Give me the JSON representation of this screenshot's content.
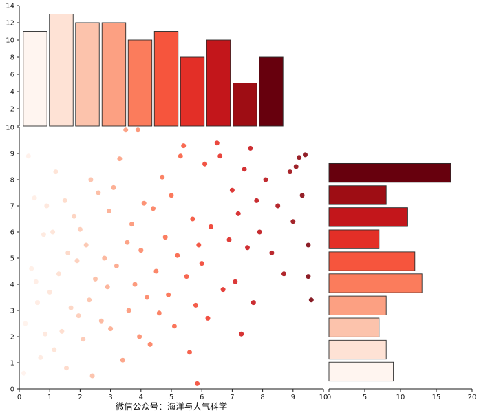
{
  "figure": {
    "background": "#ffffff",
    "caption": "微信公众号：海洋与大气科学"
  },
  "colormap_reds": [
    "#fff5f0",
    "#fee0d2",
    "#fcbba1",
    "#fc9272",
    "#fb6a4a",
    "#ef3b2c",
    "#cb181d",
    "#a50f15",
    "#67000d"
  ],
  "axis_color": "#1a1a1a",
  "bar_edge_color": "#2b2b2b",
  "chart_data": [
    {
      "id": "top-histogram",
      "type": "bar",
      "orientation": "vertical",
      "bin_centers": [
        0.52,
        1.38,
        2.24,
        3.11,
        3.97,
        4.83,
        5.69,
        6.55,
        7.42,
        8.28
      ],
      "bar_width": 0.78,
      "values": [
        11,
        13,
        12,
        12,
        10,
        11,
        8,
        10,
        5,
        8
      ],
      "colors": [
        "#fff5f0",
        "#fee2d5",
        "#fcc3ac",
        "#fca082",
        "#fb7c5c",
        "#f6553d",
        "#e32f27",
        "#c3161b",
        "#9e0d14",
        "#67000d"
      ],
      "xlim": [
        0,
        10
      ],
      "ylim": [
        0,
        14
      ],
      "yticks": [
        0,
        2,
        4,
        6,
        8,
        10,
        12,
        14
      ],
      "grid": false
    },
    {
      "id": "scatter",
      "type": "scatter",
      "xlim": [
        0,
        10
      ],
      "ylim": [
        0,
        10
      ],
      "xticks": [
        0,
        1,
        2,
        3,
        4,
        5,
        6,
        7,
        8,
        9,
        10
      ],
      "yticks": [
        0,
        1,
        2,
        3,
        4,
        5,
        6,
        7,
        8,
        9,
        10
      ],
      "color_by": "x",
      "marker_radius": 3.5,
      "grid": false,
      "points": [
        [
          0.2,
          2.5
        ],
        [
          0.3,
          8.9
        ],
        [
          0.4,
          4.6
        ],
        [
          0.5,
          7.3
        ],
        [
          0.15,
          0.6
        ],
        [
          0.6,
          3.3
        ],
        [
          0.7,
          1.2
        ],
        [
          0.8,
          5.9
        ],
        [
          0.85,
          2.1
        ],
        [
          0.9,
          7.0
        ],
        [
          0.55,
          4.1
        ],
        [
          1.0,
          3.7
        ],
        [
          1.1,
          6.0
        ],
        [
          1.15,
          1.5
        ],
        [
          1.2,
          8.3
        ],
        [
          1.3,
          4.4
        ],
        [
          1.4,
          2.2
        ],
        [
          1.5,
          7.2
        ],
        [
          1.55,
          0.8
        ],
        [
          1.6,
          5.2
        ],
        [
          1.7,
          3.1
        ],
        [
          1.8,
          6.6
        ],
        [
          1.9,
          4.9
        ],
        [
          1.95,
          2.8
        ],
        [
          2.0,
          6.1
        ],
        [
          2.1,
          1.9
        ],
        [
          2.2,
          5.5
        ],
        [
          2.3,
          3.4
        ],
        [
          2.35,
          8.0
        ],
        [
          2.4,
          0.5
        ],
        [
          2.5,
          4.2
        ],
        [
          2.6,
          7.5
        ],
        [
          2.7,
          2.6
        ],
        [
          2.8,
          5.0
        ],
        [
          2.9,
          3.9
        ],
        [
          2.95,
          6.8
        ],
        [
          3.0,
          2.3
        ],
        [
          3.1,
          7.7
        ],
        [
          3.2,
          4.7
        ],
        [
          3.3,
          8.8
        ],
        [
          3.4,
          1.1
        ],
        [
          3.5,
          9.9
        ],
        [
          3.55,
          5.6
        ],
        [
          3.6,
          3.0
        ],
        [
          3.7,
          6.3
        ],
        [
          3.8,
          4.0
        ],
        [
          3.9,
          9.9
        ],
        [
          3.95,
          2.0
        ],
        [
          4.0,
          5.3
        ],
        [
          4.1,
          7.1
        ],
        [
          4.2,
          3.5
        ],
        [
          4.3,
          1.7
        ],
        [
          4.4,
          6.9
        ],
        [
          4.5,
          4.5
        ],
        [
          4.6,
          2.9
        ],
        [
          4.7,
          8.1
        ],
        [
          4.8,
          5.8
        ],
        [
          4.9,
          3.6
        ],
        [
          5.0,
          7.4
        ],
        [
          5.1,
          2.4
        ],
        [
          5.2,
          5.1
        ],
        [
          5.3,
          8.9
        ],
        [
          5.4,
          9.3
        ],
        [
          5.5,
          4.3
        ],
        [
          5.6,
          1.4
        ],
        [
          5.7,
          6.5
        ],
        [
          5.8,
          3.2
        ],
        [
          5.85,
          0.2
        ],
        [
          5.9,
          5.5
        ],
        [
          6.0,
          4.8
        ],
        [
          6.1,
          8.6
        ],
        [
          6.2,
          2.7
        ],
        [
          6.3,
          6.2
        ],
        [
          6.5,
          9.4
        ],
        [
          6.6,
          8.9
        ],
        [
          6.7,
          3.8
        ],
        [
          6.9,
          5.7
        ],
        [
          7.0,
          7.6
        ],
        [
          7.1,
          4.1
        ],
        [
          7.2,
          6.7
        ],
        [
          7.3,
          2.1
        ],
        [
          7.4,
          8.4
        ],
        [
          7.5,
          5.4
        ],
        [
          7.6,
          9.2
        ],
        [
          7.7,
          3.3
        ],
        [
          7.8,
          7.2
        ],
        [
          7.9,
          6.0
        ],
        [
          8.1,
          8.0
        ],
        [
          8.3,
          5.2
        ],
        [
          8.5,
          7.0
        ],
        [
          8.7,
          4.4
        ],
        [
          8.9,
          8.3
        ],
        [
          9.0,
          6.4
        ],
        [
          9.1,
          8.5
        ],
        [
          9.2,
          8.85
        ],
        [
          9.3,
          7.4
        ],
        [
          9.4,
          8.95
        ],
        [
          9.5,
          5.5
        ],
        [
          9.6,
          3.4
        ],
        [
          9.5,
          4.3
        ]
      ]
    },
    {
      "id": "right-histogram",
      "type": "bar",
      "orientation": "horizontal",
      "order": "bottom-to-top",
      "bin_centers": [
        0.66,
        1.5,
        2.35,
        3.19,
        4.04,
        4.88,
        5.72,
        6.57,
        7.41,
        8.26
      ],
      "bar_thickness": 0.72,
      "values": [
        9,
        8,
        7,
        8,
        13,
        12,
        7,
        11,
        8,
        17
      ],
      "colors": [
        "#fff5f0",
        "#fee2d5",
        "#fcc3ac",
        "#fca082",
        "#fb7c5c",
        "#f6553d",
        "#e32f27",
        "#c3161b",
        "#9e0d14",
        "#67000d"
      ],
      "xlim": [
        0,
        20
      ],
      "xticks": [
        0,
        5,
        10,
        15,
        20
      ],
      "grid": false
    }
  ]
}
